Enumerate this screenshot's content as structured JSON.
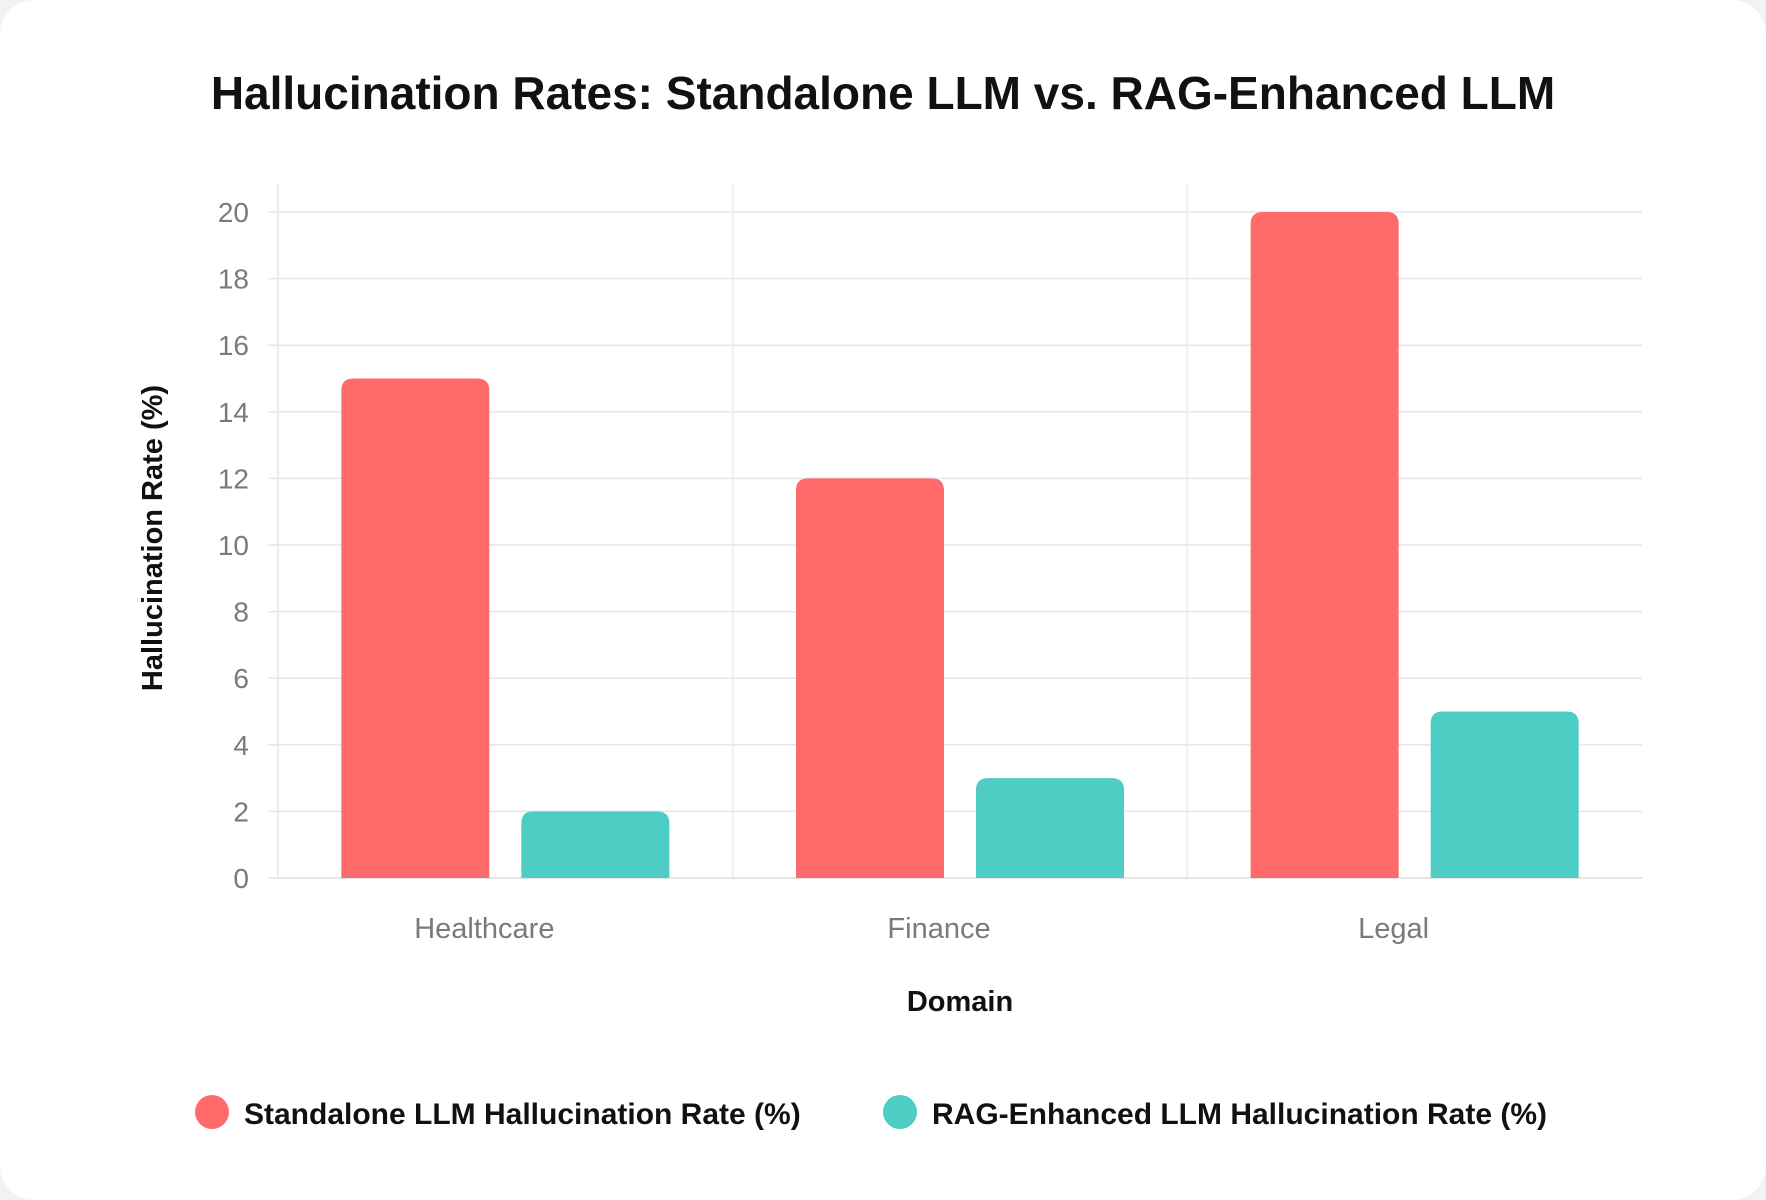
{
  "chart_data": {
    "type": "bar",
    "title": "Hallucination Rates: Standalone LLM vs. RAG-Enhanced LLM",
    "xlabel": "Domain",
    "ylabel": "Hallucination Rate (%)",
    "categories": [
      "Healthcare",
      "Finance",
      "Legal"
    ],
    "series": [
      {
        "name": "Standalone LLM Hallucination Rate (%)",
        "color": "#ff6b6b",
        "values": [
          15,
          12,
          20
        ]
      },
      {
        "name": "RAG-Enhanced LLM Hallucination Rate (%)",
        "color": "#4ecdc4",
        "values": [
          2,
          3,
          5
        ]
      }
    ],
    "ylim": [
      0,
      20
    ],
    "yticks": [
      "0",
      "2",
      "4",
      "6",
      "8",
      "10",
      "12",
      "14",
      "16",
      "18",
      "20"
    ],
    "grid": true,
    "legend": "bottom-center"
  }
}
